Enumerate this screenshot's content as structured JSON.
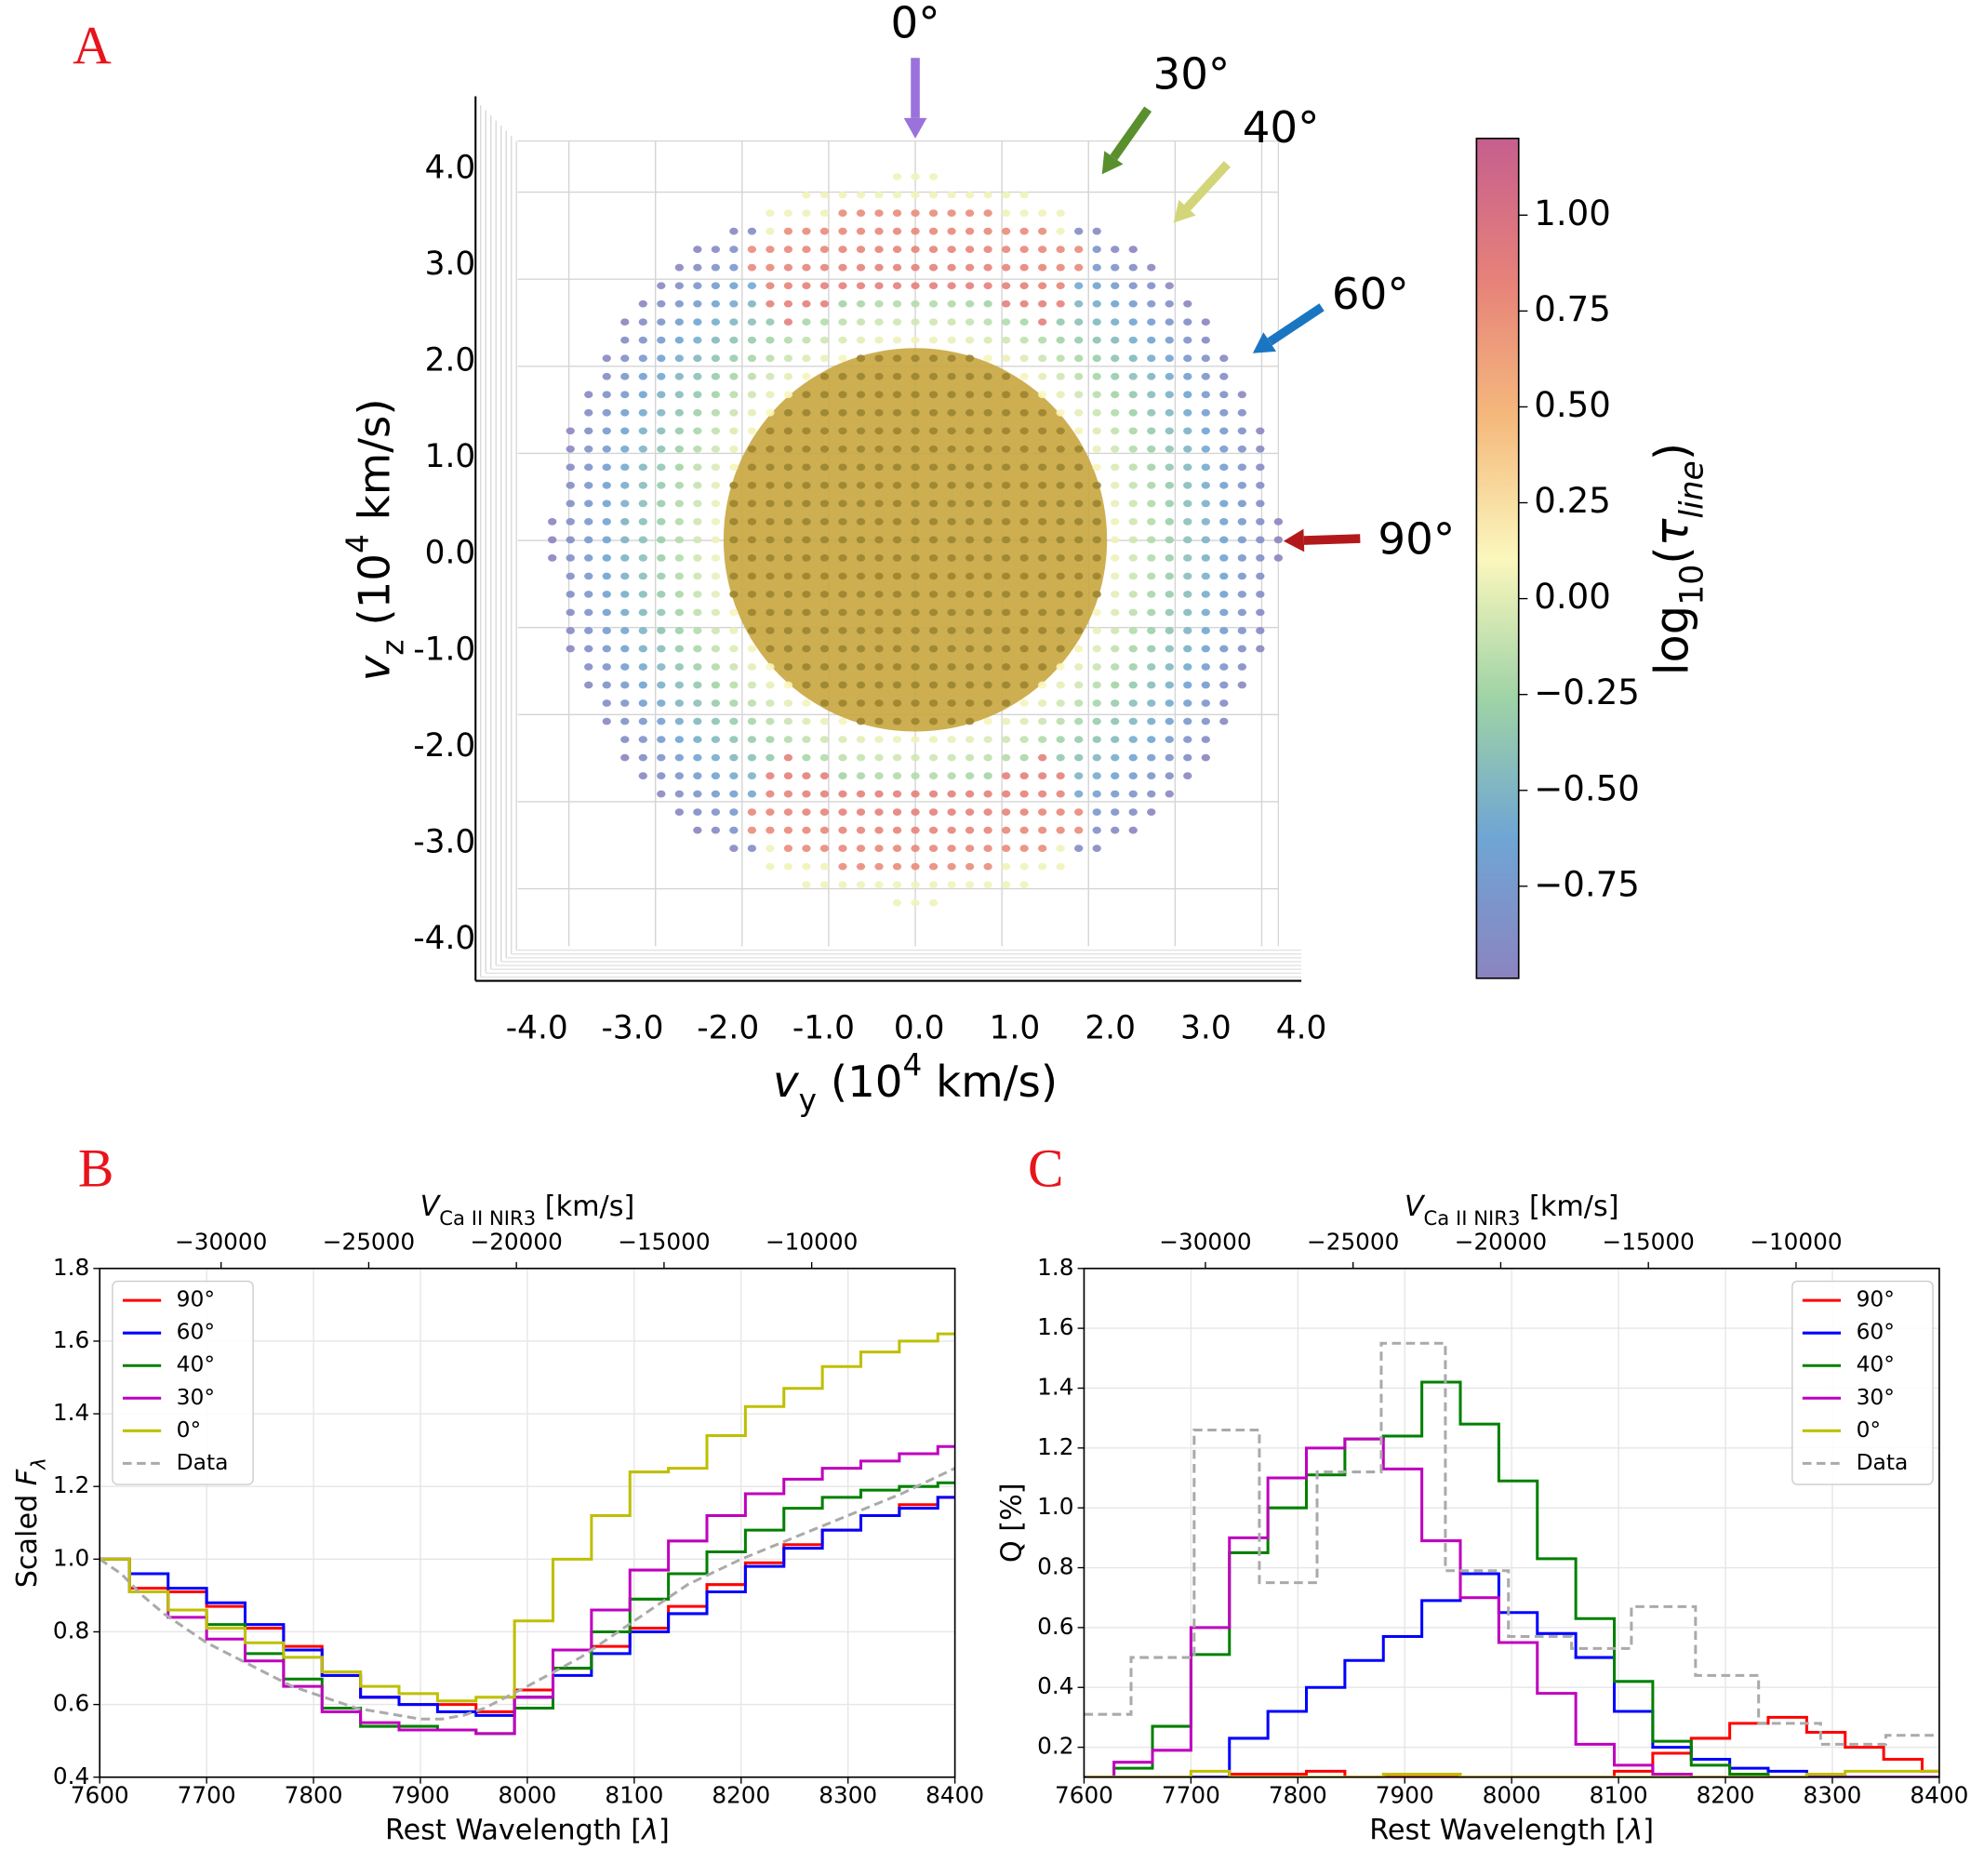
{
  "chart_data": [
    {
      "type": "scatter3d",
      "panel_label": "A",
      "xlabel": [
        {
          "text": "v",
          "italic": true
        },
        {
          "text": "y",
          "sub": true
        },
        {
          "text": " (10"
        },
        {
          "text": "4",
          "sup": true
        },
        {
          "text": " km/s)"
        }
      ],
      "ylabel": [
        {
          "text": "v",
          "italic": true
        },
        {
          "text": "z",
          "sub": true
        },
        {
          "text": " (10"
        },
        {
          "text": "4",
          "sup": true
        },
        {
          "text": " km/s)"
        }
      ],
      "xlim": [
        -4,
        4
      ],
      "ylim": [
        -4,
        4
      ],
      "xticks": [
        {
          "value": -4,
          "label": "-4.0"
        },
        {
          "value": -3,
          "label": "-3.0"
        },
        {
          "value": -2,
          "label": "-2.0"
        },
        {
          "value": -1,
          "label": "-1.0"
        },
        {
          "value": 0,
          "label": "0.0"
        },
        {
          "value": 1,
          "label": "1.0"
        },
        {
          "value": 2,
          "label": "2.0"
        },
        {
          "value": 3,
          "label": "3.0"
        },
        {
          "value": 4,
          "label": "4.0"
        }
      ],
      "yticks": [
        {
          "value": -4,
          "label": "-4.0"
        },
        {
          "value": -3,
          "label": "-3.0"
        },
        {
          "value": -2,
          "label": "-2.0"
        },
        {
          "value": -1,
          "label": "-1.0"
        },
        {
          "value": 0,
          "label": "0.0"
        },
        {
          "value": 1,
          "label": "1.0"
        },
        {
          "value": 2,
          "label": "2.0"
        },
        {
          "value": 3,
          "label": "3.0"
        },
        {
          "value": 4,
          "label": "4.0"
        }
      ],
      "grid": true,
      "colorbar": {
        "clim": [
          -0.99,
          1.2
        ],
        "colormap": [
          "#8b84c0",
          "#6fa5d4",
          "#9fd3a6",
          "#fbf7bd",
          "#f5b97c",
          "#e6817a",
          "#c65f8e"
        ],
        "ticks": [
          {
            "value": 1,
            "label": "1.00"
          },
          0.75,
          {
            "value": 0.5,
            "label": "0.50"
          },
          0.25,
          {
            "value": 0,
            "label": "0.00"
          },
          {
            "value": -0.25,
            "label": "−0.25"
          },
          {
            "value": -0.5,
            "label": "−0.50"
          },
          {
            "value": -0.75,
            "label": "−0.75"
          }
        ],
        "label": [
          {
            "text": "log"
          },
          {
            "text": "10",
            "sub": true
          },
          {
            "text": "("
          },
          {
            "text": "τ",
            "italic": true
          },
          {
            "text": "line",
            "sub": true,
            "italic": true
          },
          {
            "text": ")"
          }
        ]
      },
      "annotations": [
        {
          "text": "0°",
          "color": "#9b72dc"
        },
        {
          "text": "30°",
          "color": "#5a8f2e"
        },
        {
          "text": "40°",
          "color": "#d3d579"
        },
        {
          "text": "60°",
          "color": "#1b76c2"
        },
        {
          "text": "90°",
          "color": "#b3191b"
        }
      ]
    },
    {
      "type": "line",
      "panel_label": "B",
      "xlabel": [
        {
          "text": "Rest Wavelength ["
        },
        {
          "text": "λ",
          "italic": true
        },
        {
          "text": "]"
        }
      ],
      "ylabel": [
        {
          "text": "Scaled "
        },
        {
          "text": "F",
          "italic": true
        },
        {
          "text": "λ",
          "sub": true,
          "italic": true
        }
      ],
      "x2label": [
        {
          "text": "V",
          "italic": true
        },
        {
          "text": "Ca II NIR3",
          "sub": true
        },
        {
          "text": " [km/s]"
        }
      ],
      "xlim": [
        7600,
        8400
      ],
      "ylim": [
        0.4,
        1.8
      ],
      "xticks": [
        7600,
        7700,
        7800,
        7900,
        8000,
        8100,
        8200,
        8300,
        8400
      ],
      "yticks": [
        0.4,
        0.6,
        0.8,
        {
          "value": 1,
          "label": "1.0"
        },
        1.2,
        1.4,
        1.6,
        1.8
      ],
      "x2lim": [
        -34110,
        -5150
      ],
      "x2ticks": [
        {
          "value": -30000,
          "label": "−30000"
        },
        {
          "value": -25000,
          "label": "−25000"
        },
        {
          "value": -20000,
          "label": "−20000"
        },
        {
          "value": -15000,
          "label": "−15000"
        },
        {
          "value": -10000,
          "label": "−10000"
        }
      ],
      "grid": true,
      "legend": "upper left",
      "series": [
        {
          "name": "90°",
          "color": "#ff0000",
          "drawstyle": "steps",
          "x": [
            7600,
            7628,
            7664,
            7700,
            7736,
            7772,
            7808,
            7844,
            7880,
            7916,
            7952,
            7988,
            8024,
            8060,
            8096,
            8132,
            8168,
            8204,
            8240,
            8276,
            8312,
            8348,
            8384
          ],
          "values": [
            1.0,
            0.92,
            0.91,
            0.87,
            0.81,
            0.76,
            0.68,
            0.62,
            0.6,
            0.6,
            0.58,
            0.64,
            0.7,
            0.76,
            0.81,
            0.87,
            0.93,
            0.99,
            1.04,
            1.08,
            1.12,
            1.15,
            1.17
          ]
        },
        {
          "name": "60°",
          "color": "#0000ff",
          "drawstyle": "steps",
          "x": [
            7600,
            7628,
            7664,
            7700,
            7736,
            7772,
            7808,
            7844,
            7880,
            7916,
            7952,
            7988,
            8024,
            8060,
            8096,
            8132,
            8168,
            8204,
            8240,
            8276,
            8312,
            8348,
            8384
          ],
          "values": [
            1.0,
            0.96,
            0.92,
            0.88,
            0.82,
            0.75,
            0.68,
            0.62,
            0.6,
            0.58,
            0.57,
            0.62,
            0.68,
            0.74,
            0.8,
            0.85,
            0.91,
            0.98,
            1.03,
            1.08,
            1.12,
            1.14,
            1.17
          ]
        },
        {
          "name": "40°",
          "color": "#008000",
          "drawstyle": "steps",
          "x": [
            7600,
            7628,
            7664,
            7700,
            7736,
            7772,
            7808,
            7844,
            7880,
            7916,
            7952,
            7988,
            8024,
            8060,
            8096,
            8132,
            8168,
            8204,
            8240,
            8276,
            8312,
            8348,
            8384
          ],
          "values": [
            1.0,
            0.91,
            0.86,
            0.82,
            0.74,
            0.67,
            0.59,
            0.54,
            0.54,
            0.53,
            0.52,
            0.59,
            0.7,
            0.8,
            0.89,
            0.96,
            1.02,
            1.08,
            1.14,
            1.17,
            1.19,
            1.2,
            1.21
          ]
        },
        {
          "name": "30°",
          "color": "#bf00bf",
          "drawstyle": "steps",
          "x": [
            7600,
            7628,
            7664,
            7700,
            7736,
            7772,
            7808,
            7844,
            7880,
            7916,
            7952,
            7988,
            8024,
            8060,
            8096,
            8132,
            8168,
            8204,
            8240,
            8276,
            8312,
            8348,
            8384
          ],
          "values": [
            1.0,
            0.91,
            0.84,
            0.78,
            0.72,
            0.65,
            0.58,
            0.55,
            0.53,
            0.53,
            0.52,
            0.62,
            0.75,
            0.86,
            0.97,
            1.05,
            1.12,
            1.18,
            1.22,
            1.25,
            1.27,
            1.29,
            1.31
          ]
        },
        {
          "name": "0°",
          "color": "#bfbf00",
          "drawstyle": "steps",
          "x": [
            7600,
            7628,
            7664,
            7700,
            7736,
            7772,
            7808,
            7844,
            7880,
            7916,
            7952,
            7988,
            8024,
            8060,
            8096,
            8132,
            8168,
            8204,
            8240,
            8276,
            8312,
            8348,
            8384
          ],
          "values": [
            1.0,
            0.91,
            0.86,
            0.81,
            0.77,
            0.73,
            0.69,
            0.65,
            0.63,
            0.61,
            0.62,
            0.83,
            1.0,
            1.12,
            1.24,
            1.25,
            1.34,
            1.42,
            1.47,
            1.53,
            1.57,
            1.6,
            1.62
          ]
        },
        {
          "name": "Data",
          "color": "#aaaaaa",
          "drawstyle": "line",
          "linestyle": "dashed",
          "x": [
            7600,
            7620,
            7640,
            7660,
            7680,
            7700,
            7720,
            7740,
            7760,
            7780,
            7800,
            7820,
            7840,
            7860,
            7880,
            7900,
            7920,
            7940,
            7960,
            7980,
            8000,
            8050,
            8100,
            8150,
            8200,
            8250,
            8300,
            8350,
            8400
          ],
          "values": [
            1.0,
            0.96,
            0.9,
            0.85,
            0.81,
            0.77,
            0.74,
            0.71,
            0.68,
            0.65,
            0.63,
            0.61,
            0.59,
            0.58,
            0.57,
            0.56,
            0.56,
            0.57,
            0.59,
            0.62,
            0.65,
            0.73,
            0.83,
            0.93,
            1.0,
            1.06,
            1.12,
            1.18,
            1.25
          ]
        }
      ]
    },
    {
      "type": "line",
      "panel_label": "C",
      "xlabel": [
        {
          "text": "Rest Wavelength ["
        },
        {
          "text": "λ",
          "italic": true
        },
        {
          "text": "]"
        }
      ],
      "ylabel": [
        {
          "text": "Q [%]"
        }
      ],
      "x2label": [
        {
          "text": "V",
          "italic": true
        },
        {
          "text": "Ca II NIR3",
          "sub": true
        },
        {
          "text": " [km/s]"
        }
      ],
      "xlim": [
        7600,
        8400
      ],
      "ylim": [
        0.1,
        1.8
      ],
      "xticks": [
        7600,
        7700,
        7800,
        7900,
        8000,
        8100,
        8200,
        8300,
        8400
      ],
      "yticks": [
        0.2,
        0.4,
        0.6,
        0.8,
        {
          "value": 1,
          "label": "1.0"
        },
        1.2,
        1.4,
        1.6,
        1.8
      ],
      "x2lim": [
        -34110,
        -5150
      ],
      "x2ticks": [
        {
          "value": -30000,
          "label": "−30000"
        },
        {
          "value": -25000,
          "label": "−25000"
        },
        {
          "value": -20000,
          "label": "−20000"
        },
        {
          "value": -15000,
          "label": "−15000"
        },
        {
          "value": -10000,
          "label": "−10000"
        }
      ],
      "grid": true,
      "legend": "upper right",
      "series": [
        {
          "name": "90°",
          "color": "#ff0000",
          "drawstyle": "steps",
          "x": [
            7600,
            7628,
            7664,
            7700,
            7736,
            7772,
            7808,
            7844,
            7880,
            7916,
            7952,
            7988,
            8024,
            8060,
            8096,
            8132,
            8168,
            8204,
            8240,
            8276,
            8312,
            8348,
            8384
          ],
          "values": [
            0.1,
            0.1,
            0.1,
            0.1,
            0.11,
            0.11,
            0.12,
            0.1,
            0.1,
            0.1,
            0.1,
            0.1,
            0.1,
            0.1,
            0.12,
            0.18,
            0.23,
            0.28,
            0.3,
            0.25,
            0.2,
            0.16,
            0.12
          ]
        },
        {
          "name": "60°",
          "color": "#0000ff",
          "drawstyle": "steps",
          "x": [
            7600,
            7628,
            7664,
            7700,
            7736,
            7772,
            7808,
            7844,
            7880,
            7916,
            7952,
            7988,
            8024,
            8060,
            8096,
            8132,
            8168,
            8204,
            8240,
            8276,
            8312,
            8348,
            8384
          ],
          "values": [
            0.1,
            0.1,
            0.1,
            0.1,
            0.23,
            0.32,
            0.4,
            0.49,
            0.57,
            0.69,
            0.78,
            0.65,
            0.58,
            0.5,
            0.32,
            0.2,
            0.16,
            0.13,
            0.12,
            0.1,
            0.1,
            0.1,
            0.1
          ]
        },
        {
          "name": "40°",
          "color": "#008000",
          "drawstyle": "steps",
          "x": [
            7600,
            7628,
            7664,
            7700,
            7736,
            7772,
            7808,
            7844,
            7880,
            7916,
            7952,
            7988,
            8024,
            8060,
            8096,
            8132,
            8168,
            8204,
            8240,
            8276,
            8312,
            8348,
            8384
          ],
          "values": [
            0.1,
            0.13,
            0.27,
            0.51,
            0.85,
            1.0,
            1.11,
            1.23,
            1.24,
            1.42,
            1.28,
            1.09,
            0.83,
            0.63,
            0.42,
            0.22,
            0.14,
            0.11,
            0.1,
            0.1,
            0.1,
            0.1,
            0.1
          ]
        },
        {
          "name": "30°",
          "color": "#bf00bf",
          "drawstyle": "steps",
          "x": [
            7600,
            7628,
            7664,
            7700,
            7736,
            7772,
            7808,
            7844,
            7880,
            7916,
            7952,
            7988,
            8024,
            8060,
            8096,
            8132,
            8168,
            8204,
            8240,
            8276,
            8312,
            8348,
            8384
          ],
          "values": [
            0.1,
            0.15,
            0.19,
            0.6,
            0.9,
            1.1,
            1.2,
            1.23,
            1.13,
            0.89,
            0.7,
            0.55,
            0.38,
            0.21,
            0.14,
            0.11,
            0.1,
            0.1,
            0.1,
            0.1,
            0.1,
            0.1,
            0.1
          ]
        },
        {
          "name": "0°",
          "color": "#bfbf00",
          "drawstyle": "steps",
          "x": [
            7600,
            7628,
            7664,
            7700,
            7736,
            7772,
            7808,
            7844,
            7880,
            7916,
            7952,
            7988,
            8024,
            8060,
            8096,
            8132,
            8168,
            8204,
            8240,
            8276,
            8312,
            8348,
            8384
          ],
          "values": [
            0.1,
            0.1,
            0.1,
            0.12,
            0.1,
            0.1,
            0.1,
            0.1,
            0.11,
            0.11,
            0.1,
            0.1,
            0.1,
            0.1,
            0.1,
            0.1,
            0.1,
            0.1,
            0.1,
            0.11,
            0.12,
            0.12,
            0.12
          ]
        },
        {
          "name": "Data",
          "color": "#aaaaaa",
          "drawstyle": "steps",
          "linestyle": "dashed",
          "x": [
            7600,
            7644,
            7703,
            7764,
            7818,
            7878,
            7938,
            7997,
            8056,
            8112,
            8172,
            8231,
            8289,
            8350
          ],
          "values": [
            0.31,
            0.5,
            1.26,
            0.75,
            1.12,
            1.55,
            0.79,
            0.57,
            0.53,
            0.67,
            0.44,
            0.28,
            0.21,
            0.24
          ]
        }
      ]
    }
  ]
}
